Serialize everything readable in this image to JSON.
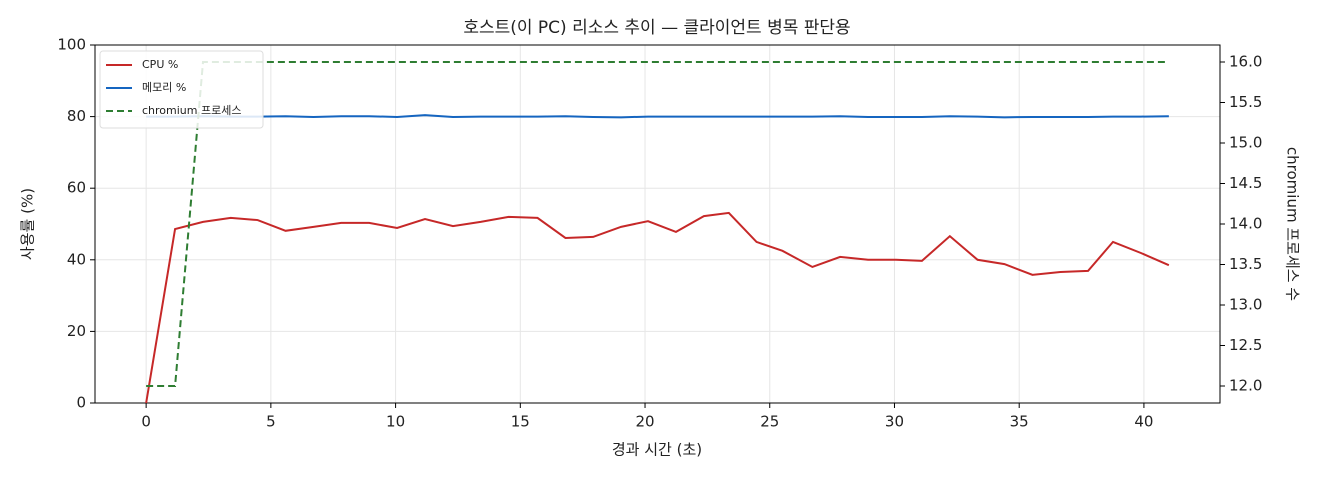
{
  "chart_data": {
    "type": "line",
    "title": "호스트(이 PC) 리소스 추이 — 클라이언트 병목 판단용",
    "x_label": "경과 시간 (초)",
    "y_label": "사용률 (%)",
    "y2_label": "chromium 프로세스 수",
    "x": [
      0,
      1.16,
      2.28,
      3.39,
      4.47,
      5.59,
      6.71,
      7.82,
      8.94,
      10.06,
      11.18,
      12.3,
      13.41,
      14.53,
      15.69,
      16.81,
      17.92,
      19.04,
      20.12,
      21.24,
      22.36,
      23.36,
      24.47,
      25.51,
      26.71,
      27.82,
      28.94,
      30.06,
      31.1,
      32.22,
      33.33,
      34.41,
      35.53,
      36.65,
      37.76,
      38.76,
      39.88,
      41.0
    ],
    "series": [
      {
        "name": "CPU %",
        "color": "#c62828",
        "dashed": false,
        "values": [
          0,
          48.6,
          50.6,
          51.7,
          51.1,
          48.1,
          49.2,
          50.3,
          50.3,
          48.9,
          51.4,
          49.4,
          50.6,
          52.0,
          51.7,
          46.1,
          46.4,
          49.2,
          50.8,
          47.8,
          52.2,
          53.1,
          45.0,
          42.5,
          38.0,
          40.8,
          40.0,
          40.0,
          39.7,
          46.6,
          40.0,
          38.8,
          35.8,
          36.6,
          36.9,
          45.0,
          41.9,
          38.5
        ]
      },
      {
        "name": "메모리 %",
        "color": "#1565c0",
        "dashed": false,
        "values": [
          80.0,
          80.0,
          80.1,
          80.0,
          80.0,
          80.1,
          79.9,
          80.1,
          80.1,
          79.9,
          80.4,
          79.9,
          80.0,
          80.0,
          80.0,
          80.1,
          79.9,
          79.8,
          80.0,
          80.0,
          80.0,
          80.0,
          80.0,
          80.0,
          80.0,
          80.1,
          79.9,
          79.9,
          79.9,
          80.1,
          80.0,
          79.8,
          79.9,
          79.9,
          79.9,
          80.0,
          80.0,
          80.1
        ]
      },
      {
        "name": "chromium 프로세스",
        "color": "#2e7d32",
        "dashed": true,
        "axis": "y2",
        "values": [
          12,
          12,
          16,
          16,
          16,
          16,
          16,
          16,
          16,
          16,
          16,
          16,
          16,
          16,
          16,
          16,
          16,
          16,
          16,
          16,
          16,
          16,
          16,
          16,
          16,
          16,
          16,
          16,
          16,
          16,
          16,
          16,
          16,
          16,
          16,
          16,
          16,
          16
        ]
      }
    ],
    "xlim": [
      -2.05,
      43.05
    ],
    "xticks": [
      0,
      5,
      10,
      15,
      20,
      25,
      30,
      35,
      40
    ],
    "ylim": [
      0,
      100
    ],
    "yticks": [
      0,
      20,
      40,
      60,
      80,
      100
    ],
    "y2lim": [
      11.79,
      16.21
    ],
    "y2ticks": [
      {
        "value": 12,
        "label": "12.0"
      },
      {
        "value": 12.5,
        "label": "12.5"
      },
      {
        "value": 13,
        "label": "13.0"
      },
      {
        "value": 13.5,
        "label": "13.5"
      },
      {
        "value": 14,
        "label": "14.0"
      },
      {
        "value": 14.5,
        "label": "14.5"
      },
      {
        "value": 15,
        "label": "15.0"
      },
      {
        "value": 15.5,
        "label": "15.5"
      },
      {
        "value": 16,
        "label": "16.0"
      }
    ],
    "grid": true,
    "legend": "upper-left"
  }
}
